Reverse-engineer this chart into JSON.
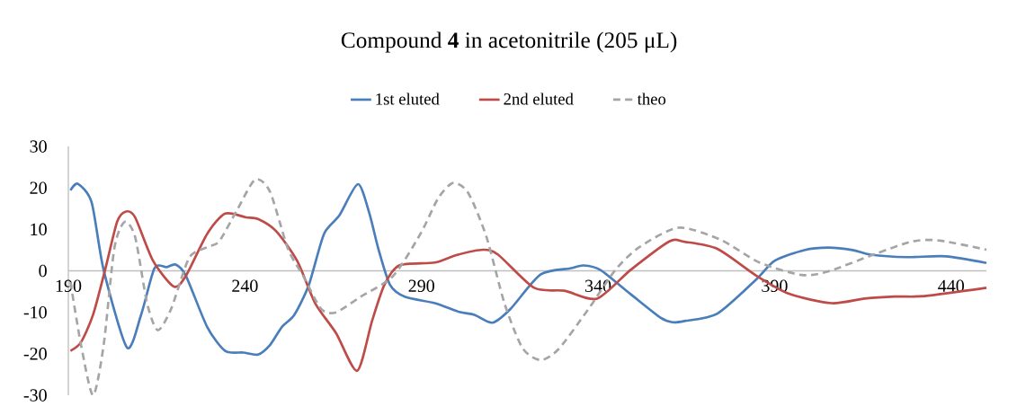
{
  "chart_data": {
    "type": "line",
    "title": "Compound **4** in acetonitrile (205 μL)",
    "xlim": [
      190,
      450
    ],
    "xticks": [
      190,
      240,
      290,
      340,
      390,
      440
    ],
    "ylim": [
      -30,
      30
    ],
    "yticks": [
      -30,
      -20,
      -10,
      0,
      10,
      20,
      30
    ],
    "grid": false,
    "legend": "top",
    "marker": "none",
    "series": [
      {
        "name": "1st eluted",
        "color": "#4a7ebb",
        "line_style": "solid",
        "x": [
          190.6,
          192.7,
          196.6,
          200,
          206.6,
          210.6,
          214.4,
          217.8,
          220.4,
          223.3,
          229.3,
          234.4,
          239.5,
          243.7,
          247.1,
          250.5,
          254,
          258.1,
          262.4,
          266.7,
          272,
          275.2,
          277.8,
          281.1,
          285.4,
          293.8,
          300.7,
          305,
          310.1,
          315.2,
          323.7,
          332.1,
          335.9,
          340.7,
          349.2,
          357.7,
          361.1,
          364.5,
          373.8,
          384.9,
          390,
          398.4,
          405.3,
          412.1,
          417.2,
          427.4,
          438.5,
          450
        ],
        "values": [
          19.4,
          21,
          16.5,
          0.2,
          -18.5,
          -10.6,
          0.6,
          0.9,
          1.5,
          -1.2,
          -13.5,
          -19.3,
          -19.7,
          -20.2,
          -17.9,
          -13.5,
          -10.6,
          -3.4,
          8.9,
          13.3,
          20.9,
          14,
          5.3,
          -3.4,
          -6.3,
          -7.8,
          -9.9,
          -10.6,
          -12.5,
          -9.2,
          -0.9,
          0.6,
          1.3,
          0.2,
          -5.6,
          -11.3,
          -12.4,
          -12.1,
          -10.3,
          -2,
          2.4,
          5,
          5.6,
          5,
          3.9,
          3.3,
          3.5,
          1.9
        ]
      },
      {
        "name": "2nd eluted",
        "color": "#be4b48",
        "line_style": "solid",
        "x": [
          190.6,
          193.6,
          197,
          200.4,
          203.8,
          206.3,
          208.9,
          214,
          219.9,
          223.3,
          229.3,
          234.4,
          240.3,
          243.7,
          248.8,
          254.8,
          259.9,
          265.8,
          271.8,
          276,
          279.5,
          283.7,
          293.8,
          299.9,
          307.5,
          311.7,
          321.9,
          330.5,
          339.7,
          349.2,
          360.2,
          364.5,
          373.8,
          384.9,
          394.3,
          406.2,
          415.5,
          424,
          432.5,
          450
        ],
        "values": [
          -19.3,
          -17.2,
          -10.6,
          0.2,
          11.8,
          14.3,
          12.9,
          2.4,
          -3.8,
          -1.2,
          8.9,
          13.8,
          12.9,
          12.5,
          9.6,
          2.4,
          -7.8,
          -15,
          -24.1,
          -12.1,
          -3.4,
          1.3,
          2,
          3.8,
          5.1,
          3.9,
          -4.1,
          -4.8,
          -6.7,
          0.2,
          7.1,
          7,
          5.3,
          -1.2,
          -5.6,
          -7.8,
          -6.7,
          -6.2,
          -6.1,
          -4.1
        ]
      },
      {
        "name": "theo",
        "color": "#a5a5a5",
        "line_style": "dashed",
        "x": [
          190.6,
          193.6,
          197,
          200,
          203,
          205.9,
          208.9,
          212.3,
          215.3,
          219.1,
          224.2,
          229.3,
          232.7,
          237.8,
          242.9,
          247.1,
          252.2,
          256.5,
          261.6,
          265.8,
          272.7,
          282,
          289.7,
          294.8,
          299,
          303.3,
          308.4,
          313.5,
          318.6,
          323.7,
          328.8,
          337.3,
          344.9,
          351.7,
          362.8,
          374.7,
          385.7,
          397.7,
          405.3,
          418.9,
          429.1,
          436.8,
          450
        ],
        "values": [
          -2.7,
          -17.9,
          -30,
          -17.9,
          5.3,
          11.8,
          8.2,
          -7.8,
          -14.3,
          -9.2,
          3.1,
          5.7,
          7.1,
          14.7,
          22,
          19.1,
          5.3,
          -1.2,
          -9.2,
          -10,
          -6.3,
          -1.2,
          8.9,
          17.6,
          21.2,
          18.7,
          8.2,
          -7.8,
          -18.6,
          -21.5,
          -18.9,
          -9.2,
          0.2,
          5.7,
          10.4,
          7.5,
          2,
          -1,
          -0.1,
          4.2,
          7.1,
          7.3,
          5.1
        ]
      }
    ]
  }
}
